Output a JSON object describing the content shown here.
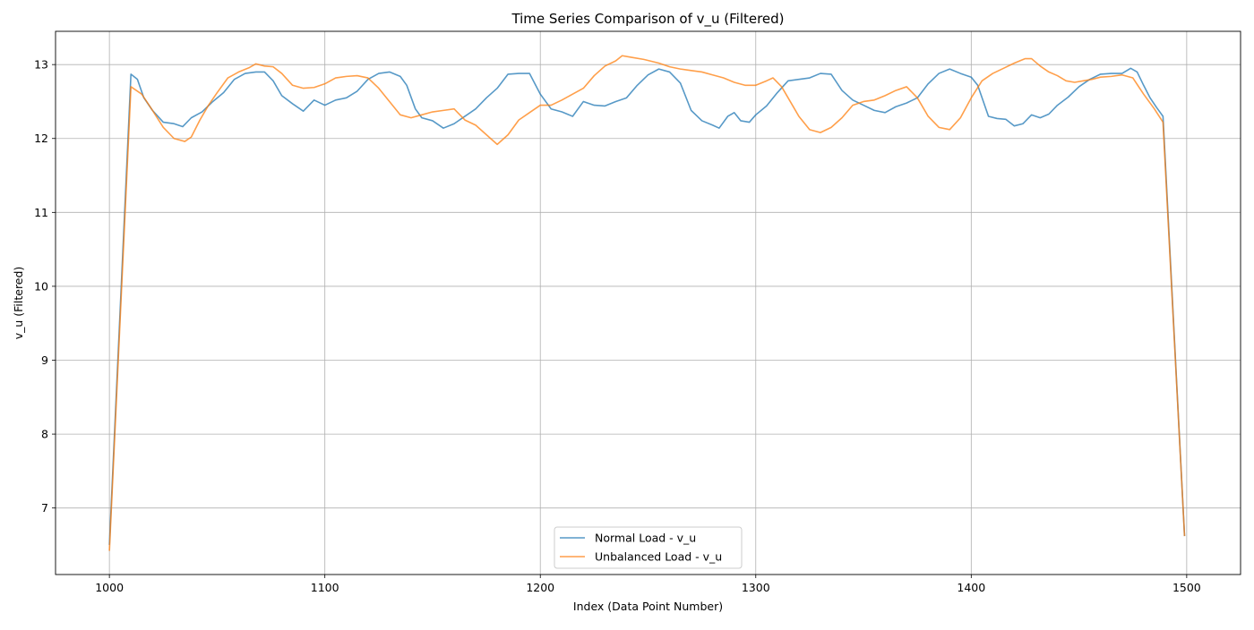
{
  "chart_data": {
    "type": "line",
    "title": "Time Series Comparison of v_u (Filtered)",
    "xlabel": "Index (Data Point Number)",
    "ylabel": "v_u (Filtered)",
    "xlim": [
      975,
      1525
    ],
    "ylim": [
      6.1,
      13.45
    ],
    "xticks": [
      1000,
      1100,
      1200,
      1300,
      1400,
      1500
    ],
    "yticks": [
      7,
      8,
      9,
      10,
      11,
      12,
      13
    ],
    "grid": true,
    "legend_position": "lower center",
    "series": [
      {
        "name": "Normal Load - v_u",
        "color": "#1f77b4",
        "points": [
          [
            1000,
            6.5
          ],
          [
            1010,
            12.87
          ],
          [
            1013,
            12.8
          ],
          [
            1016,
            12.55
          ],
          [
            1020,
            12.38
          ],
          [
            1025,
            12.22
          ],
          [
            1030,
            12.2
          ],
          [
            1034,
            12.16
          ],
          [
            1038,
            12.28
          ],
          [
            1043,
            12.36
          ],
          [
            1048,
            12.5
          ],
          [
            1053,
            12.62
          ],
          [
            1058,
            12.8
          ],
          [
            1063,
            12.88
          ],
          [
            1068,
            12.9
          ],
          [
            1072,
            12.9
          ],
          [
            1076,
            12.78
          ],
          [
            1080,
            12.58
          ],
          [
            1085,
            12.47
          ],
          [
            1090,
            12.37
          ],
          [
            1095,
            12.52
          ],
          [
            1100,
            12.45
          ],
          [
            1105,
            12.52
          ],
          [
            1110,
            12.55
          ],
          [
            1115,
            12.64
          ],
          [
            1120,
            12.8
          ],
          [
            1125,
            12.88
          ],
          [
            1130,
            12.9
          ],
          [
            1135,
            12.84
          ],
          [
            1138,
            12.72
          ],
          [
            1142,
            12.4
          ],
          [
            1145,
            12.28
          ],
          [
            1150,
            12.24
          ],
          [
            1155,
            12.14
          ],
          [
            1160,
            12.2
          ],
          [
            1165,
            12.3
          ],
          [
            1170,
            12.4
          ],
          [
            1175,
            12.55
          ],
          [
            1180,
            12.68
          ],
          [
            1185,
            12.87
          ],
          [
            1190,
            12.88
          ],
          [
            1195,
            12.88
          ],
          [
            1200,
            12.6
          ],
          [
            1205,
            12.4
          ],
          [
            1210,
            12.36
          ],
          [
            1215,
            12.3
          ],
          [
            1220,
            12.5
          ],
          [
            1225,
            12.45
          ],
          [
            1230,
            12.44
          ],
          [
            1235,
            12.5
          ],
          [
            1240,
            12.55
          ],
          [
            1245,
            12.72
          ],
          [
            1250,
            12.86
          ],
          [
            1255,
            12.94
          ],
          [
            1260,
            12.9
          ],
          [
            1265,
            12.75
          ],
          [
            1270,
            12.38
          ],
          [
            1275,
            12.24
          ],
          [
            1280,
            12.18
          ],
          [
            1283,
            12.14
          ],
          [
            1287,
            12.3
          ],
          [
            1290,
            12.35
          ],
          [
            1293,
            12.24
          ],
          [
            1297,
            12.22
          ],
          [
            1300,
            12.32
          ],
          [
            1305,
            12.44
          ],
          [
            1310,
            12.62
          ],
          [
            1315,
            12.78
          ],
          [
            1320,
            12.8
          ],
          [
            1325,
            12.82
          ],
          [
            1330,
            12.88
          ],
          [
            1335,
            12.87
          ],
          [
            1340,
            12.65
          ],
          [
            1345,
            12.52
          ],
          [
            1350,
            12.45
          ],
          [
            1355,
            12.38
          ],
          [
            1360,
            12.35
          ],
          [
            1365,
            12.43
          ],
          [
            1370,
            12.48
          ],
          [
            1375,
            12.55
          ],
          [
            1380,
            12.74
          ],
          [
            1385,
            12.88
          ],
          [
            1390,
            12.94
          ],
          [
            1395,
            12.88
          ],
          [
            1400,
            12.83
          ],
          [
            1403,
            12.72
          ],
          [
            1408,
            12.3
          ],
          [
            1412,
            12.27
          ],
          [
            1416,
            12.26
          ],
          [
            1420,
            12.17
          ],
          [
            1424,
            12.2
          ],
          [
            1428,
            12.32
          ],
          [
            1432,
            12.28
          ],
          [
            1436,
            12.33
          ],
          [
            1440,
            12.45
          ],
          [
            1445,
            12.56
          ],
          [
            1450,
            12.7
          ],
          [
            1455,
            12.8
          ],
          [
            1460,
            12.87
          ],
          [
            1465,
            12.88
          ],
          [
            1470,
            12.88
          ],
          [
            1474,
            12.95
          ],
          [
            1477,
            12.9
          ],
          [
            1480,
            12.72
          ],
          [
            1483,
            12.55
          ],
          [
            1486,
            12.42
          ],
          [
            1489,
            12.3
          ],
          [
            1499,
            6.62
          ]
        ]
      },
      {
        "name": "Unbalanced Load - v_u",
        "color": "#ff7f0e",
        "points": [
          [
            1000,
            6.42
          ],
          [
            1010,
            12.7
          ],
          [
            1015,
            12.6
          ],
          [
            1020,
            12.38
          ],
          [
            1025,
            12.15
          ],
          [
            1030,
            12.0
          ],
          [
            1035,
            11.96
          ],
          [
            1038,
            12.02
          ],
          [
            1042,
            12.25
          ],
          [
            1046,
            12.45
          ],
          [
            1050,
            12.62
          ],
          [
            1055,
            12.82
          ],
          [
            1060,
            12.9
          ],
          [
            1065,
            12.96
          ],
          [
            1068,
            13.01
          ],
          [
            1072,
            12.98
          ],
          [
            1076,
            12.97
          ],
          [
            1080,
            12.88
          ],
          [
            1085,
            12.72
          ],
          [
            1090,
            12.68
          ],
          [
            1095,
            12.69
          ],
          [
            1100,
            12.74
          ],
          [
            1105,
            12.82
          ],
          [
            1110,
            12.84
          ],
          [
            1115,
            12.85
          ],
          [
            1120,
            12.82
          ],
          [
            1125,
            12.68
          ],
          [
            1130,
            12.5
          ],
          [
            1135,
            12.32
          ],
          [
            1140,
            12.28
          ],
          [
            1145,
            12.32
          ],
          [
            1150,
            12.36
          ],
          [
            1155,
            12.38
          ],
          [
            1160,
            12.4
          ],
          [
            1165,
            12.25
          ],
          [
            1170,
            12.18
          ],
          [
            1175,
            12.05
          ],
          [
            1180,
            11.92
          ],
          [
            1185,
            12.05
          ],
          [
            1190,
            12.25
          ],
          [
            1195,
            12.35
          ],
          [
            1200,
            12.45
          ],
          [
            1205,
            12.45
          ],
          [
            1210,
            12.52
          ],
          [
            1215,
            12.6
          ],
          [
            1220,
            12.68
          ],
          [
            1225,
            12.85
          ],
          [
            1230,
            12.98
          ],
          [
            1235,
            13.05
          ],
          [
            1238,
            13.12
          ],
          [
            1242,
            13.1
          ],
          [
            1248,
            13.07
          ],
          [
            1255,
            13.02
          ],
          [
            1260,
            12.97
          ],
          [
            1265,
            12.94
          ],
          [
            1270,
            12.92
          ],
          [
            1275,
            12.9
          ],
          [
            1280,
            12.86
          ],
          [
            1285,
            12.82
          ],
          [
            1290,
            12.76
          ],
          [
            1295,
            12.72
          ],
          [
            1300,
            12.72
          ],
          [
            1305,
            12.78
          ],
          [
            1308,
            12.82
          ],
          [
            1312,
            12.7
          ],
          [
            1316,
            12.5
          ],
          [
            1320,
            12.3
          ],
          [
            1325,
            12.12
          ],
          [
            1330,
            12.08
          ],
          [
            1335,
            12.15
          ],
          [
            1340,
            12.28
          ],
          [
            1345,
            12.45
          ],
          [
            1350,
            12.5
          ],
          [
            1355,
            12.52
          ],
          [
            1360,
            12.58
          ],
          [
            1365,
            12.65
          ],
          [
            1370,
            12.7
          ],
          [
            1375,
            12.55
          ],
          [
            1380,
            12.3
          ],
          [
            1385,
            12.15
          ],
          [
            1390,
            12.12
          ],
          [
            1395,
            12.28
          ],
          [
            1400,
            12.55
          ],
          [
            1405,
            12.78
          ],
          [
            1410,
            12.88
          ],
          [
            1415,
            12.95
          ],
          [
            1420,
            13.02
          ],
          [
            1425,
            13.08
          ],
          [
            1428,
            13.08
          ],
          [
            1432,
            12.98
          ],
          [
            1436,
            12.9
          ],
          [
            1440,
            12.85
          ],
          [
            1444,
            12.78
          ],
          [
            1448,
            12.76
          ],
          [
            1452,
            12.78
          ],
          [
            1456,
            12.8
          ],
          [
            1460,
            12.83
          ],
          [
            1465,
            12.84
          ],
          [
            1470,
            12.86
          ],
          [
            1475,
            12.82
          ],
          [
            1480,
            12.6
          ],
          [
            1485,
            12.4
          ],
          [
            1489,
            12.22
          ],
          [
            1499,
            6.62
          ]
        ]
      }
    ]
  }
}
